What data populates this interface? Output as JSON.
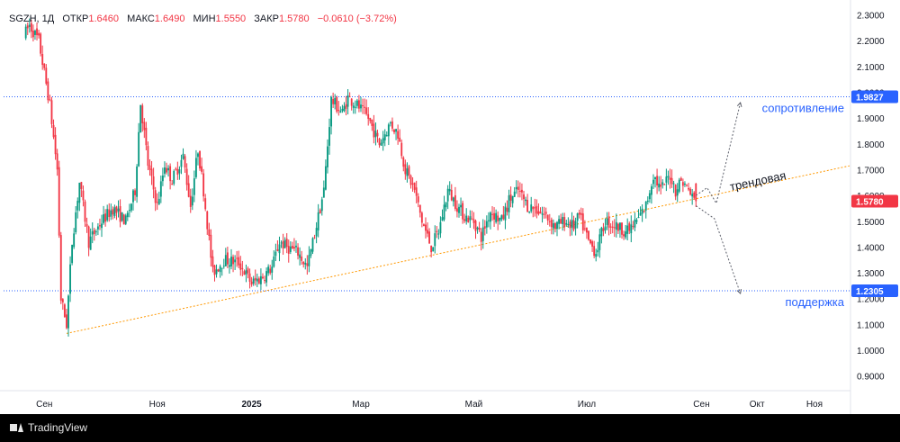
{
  "legend": {
    "symbol": "SGZH, 1Д",
    "open_label": "ОТКР",
    "open": "1.6460",
    "high_label": "МАКС",
    "high": "1.6490",
    "low_label": "МИН",
    "low": "1.5550",
    "close_label": "ЗАКР",
    "close": "1.5780",
    "change": "−0.0610 (−3.72%)"
  },
  "colors": {
    "up": "#089981",
    "down": "#f23645",
    "trend": "#ff9800",
    "level": "#2962ff",
    "annotation": "#2962ff"
  },
  "chart_data": {
    "type": "candlestick",
    "y_ticks": [
      "2.3000",
      "2.2000",
      "2.1000",
      "2.0000",
      "1.9000",
      "1.8000",
      "1.7000",
      "1.6000",
      "1.5000",
      "1.4000",
      "1.3000",
      "1.2000",
      "1.1000",
      "1.0000",
      "0.9000"
    ],
    "ylim": [
      0.85,
      2.33
    ],
    "x_ticks": [
      {
        "label": "Сен",
        "bold": false,
        "day": 10
      },
      {
        "label": "Ноя",
        "bold": false,
        "day": 71
      },
      {
        "label": "2025",
        "bold": true,
        "day": 122
      },
      {
        "label": "Мар",
        "bold": false,
        "day": 181
      },
      {
        "label": "Май",
        "bold": false,
        "day": 242
      },
      {
        "label": "Июл",
        "bold": false,
        "day": 303
      },
      {
        "label": "Сен",
        "bold": false,
        "day": 365
      },
      {
        "label": "Окт",
        "bold": false,
        "day": 395
      },
      {
        "label": "Ноя",
        "bold": false,
        "day": 426
      }
    ],
    "xlim": [
      -12,
      445
    ],
    "price_path": [
      [
        0,
        2.22
      ],
      [
        3,
        2.26
      ],
      [
        8,
        2.2
      ],
      [
        14,
        1.95
      ],
      [
        18,
        1.7
      ],
      [
        20,
        1.2
      ],
      [
        23,
        1.1
      ],
      [
        26,
        1.42
      ],
      [
        30,
        1.65
      ],
      [
        35,
        1.42
      ],
      [
        42,
        1.5
      ],
      [
        48,
        1.55
      ],
      [
        55,
        1.5
      ],
      [
        60,
        1.62
      ],
      [
        63,
        1.96
      ],
      [
        67,
        1.72
      ],
      [
        72,
        1.56
      ],
      [
        76,
        1.72
      ],
      [
        80,
        1.66
      ],
      [
        86,
        1.75
      ],
      [
        90,
        1.56
      ],
      [
        94,
        1.78
      ],
      [
        97,
        1.62
      ],
      [
        102,
        1.3
      ],
      [
        108,
        1.35
      ],
      [
        116,
        1.34
      ],
      [
        123,
        1.26
      ],
      [
        128,
        1.28
      ],
      [
        134,
        1.32
      ],
      [
        138,
        1.42
      ],
      [
        142,
        1.4
      ],
      [
        148,
        1.38
      ],
      [
        153,
        1.32
      ],
      [
        157,
        1.45
      ],
      [
        162,
        1.62
      ],
      [
        166,
        1.97
      ],
      [
        172,
        1.92
      ],
      [
        175,
        1.98
      ],
      [
        180,
        1.95
      ],
      [
        186,
        1.9
      ],
      [
        192,
        1.8
      ],
      [
        198,
        1.88
      ],
      [
        202,
        1.84
      ],
      [
        206,
        1.7
      ],
      [
        211,
        1.62
      ],
      [
        215,
        1.5
      ],
      [
        220,
        1.4
      ],
      [
        224,
        1.46
      ],
      [
        229,
        1.62
      ],
      [
        234,
        1.56
      ],
      [
        238,
        1.52
      ],
      [
        243,
        1.5
      ],
      [
        247,
        1.44
      ],
      [
        252,
        1.54
      ],
      [
        258,
        1.5
      ],
      [
        262,
        1.58
      ],
      [
        267,
        1.62
      ],
      [
        272,
        1.56
      ],
      [
        276,
        1.55
      ],
      [
        282,
        1.52
      ],
      [
        287,
        1.48
      ],
      [
        292,
        1.5
      ],
      [
        297,
        1.48
      ],
      [
        300,
        1.52
      ],
      [
        305,
        1.42
      ],
      [
        309,
        1.38
      ],
      [
        314,
        1.5
      ],
      [
        320,
        1.48
      ],
      [
        326,
        1.46
      ],
      [
        331,
        1.5
      ],
      [
        336,
        1.56
      ],
      [
        340,
        1.68
      ],
      [
        344,
        1.62
      ],
      [
        349,
        1.68
      ],
      [
        352,
        1.62
      ],
      [
        355,
        1.66
      ],
      [
        359,
        1.62
      ],
      [
        362,
        1.58
      ]
    ],
    "last_day": 362,
    "trend_line": {
      "start": [
        22,
        1.065
      ],
      "end": [
        445,
        1.715
      ]
    },
    "resistance": {
      "value": 1.9827,
      "label": "1.9827"
    },
    "support": {
      "value": 1.2305,
      "label": "1.2305"
    },
    "current_price": {
      "value": 1.578,
      "label": "1.5780"
    },
    "projection_up": [
      [
        362,
        1.6
      ],
      [
        368,
        1.63
      ],
      [
        373,
        1.57
      ],
      [
        386,
        1.96
      ]
    ],
    "projection_down": [
      [
        362,
        1.56
      ],
      [
        366,
        1.54
      ],
      [
        372,
        1.51
      ],
      [
        386,
        1.22
      ]
    ],
    "annotations": {
      "resistance_text": "сопротивление",
      "support_text": "поддержка",
      "trend_text": "трендовая"
    }
  },
  "footer": {
    "brand": "TradingView"
  }
}
